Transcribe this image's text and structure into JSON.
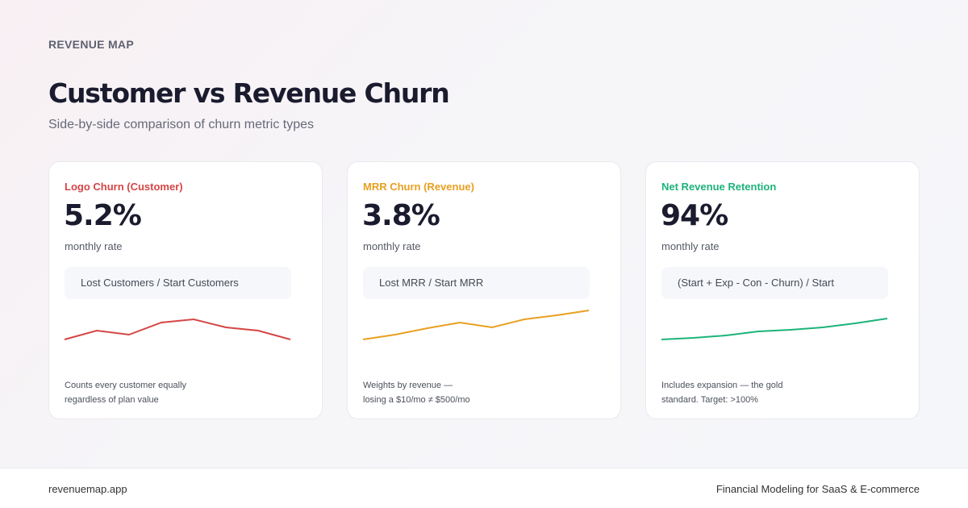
{
  "header": {
    "brand": "REVENUE MAP",
    "title": "Customer vs Revenue Churn",
    "subtitle": "Side-by-side comparison of churn metric types"
  },
  "cards": [
    {
      "label": "Logo Churn (Customer)",
      "value": "5.2%",
      "rate": "monthly rate",
      "formula": "Lost Customers / Start Customers",
      "note_1": "Counts every customer equally",
      "note_2": "regardless of plan value",
      "color": "#d64545"
    },
    {
      "label": "MRR Churn (Revenue)",
      "value": "3.8%",
      "rate": "monthly rate",
      "formula": "Lost MRR / Start MRR",
      "note_1": "Weights by revenue —",
      "note_2": "losing a $10/mo ≠ $500/mo",
      "color": "#e8a020"
    },
    {
      "label": "Net Revenue Retention",
      "value": "94%",
      "rate": "monthly rate",
      "formula": "(Start + Exp - Con - Churn) / Start",
      "note_1": "Includes expansion — the gold",
      "note_2": "standard. Target: >100%",
      "color": "#1db37a"
    }
  ],
  "footer": {
    "site": "revenuemap.app",
    "tagline": "Financial Modeling for SaaS & E-commerce"
  }
}
